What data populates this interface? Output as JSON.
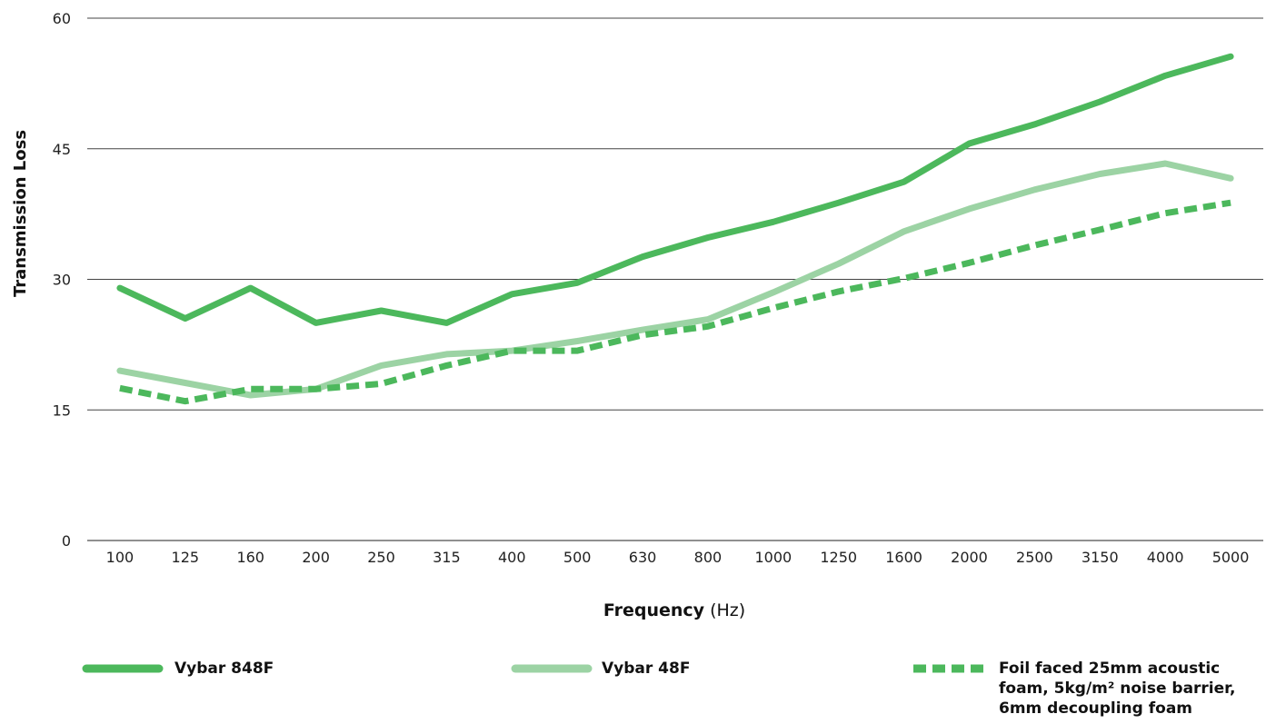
{
  "chart_data": {
    "type": "line",
    "title": "",
    "ylabel": "Transmission Loss",
    "xlabel_main": "Frequency",
    "xlabel_unit": "(Hz)",
    "ylim": [
      0,
      60
    ],
    "yticks": [
      0,
      15,
      30,
      45,
      60
    ],
    "grid": true,
    "categories": [
      "100",
      "125",
      "160",
      "200",
      "250",
      "315",
      "400",
      "500",
      "630",
      "800",
      "1000",
      "1250",
      "1600",
      "2000",
      "2500",
      "3150",
      "4000",
      "5000"
    ],
    "series": [
      {
        "name": "Vybar 848F",
        "color": "#4cb85c",
        "style": "solid",
        "values": [
          29.0,
          25.5,
          29.0,
          25.0,
          26.4,
          25.0,
          28.3,
          29.6,
          32.6,
          34.8,
          36.6,
          38.8,
          41.2,
          45.6,
          47.8,
          50.4,
          53.4,
          55.6
        ]
      },
      {
        "name": "Vybar 48F",
        "color": "#9cd3a4",
        "style": "solid",
        "values": [
          19.5,
          18.1,
          16.7,
          17.4,
          20.1,
          21.4,
          21.8,
          22.9,
          24.2,
          25.4,
          28.5,
          31.8,
          35.5,
          38.1,
          40.3,
          42.1,
          43.3,
          41.6
        ]
      },
      {
        "name": "Foil faced 25mm acoustic foam, 5kg/m² noise barrier, 6mm decoupling foam",
        "color": "#4cb85c",
        "style": "dashed",
        "values": [
          17.5,
          16.0,
          17.4,
          17.4,
          18.0,
          20.1,
          21.8,
          21.8,
          23.6,
          24.6,
          26.7,
          28.6,
          30.1,
          31.9,
          33.9,
          35.7,
          37.6,
          38.8
        ]
      }
    ],
    "legend": {
      "position": "bottom",
      "items": [
        {
          "label": "Vybar 848F"
        },
        {
          "label": "Vybar 48F"
        },
        {
          "line1": "Foil faced 25mm acoustic",
          "line2": "foam, 5kg/m² noise barrier,",
          "line3": "6mm decoupling foam"
        }
      ]
    }
  }
}
